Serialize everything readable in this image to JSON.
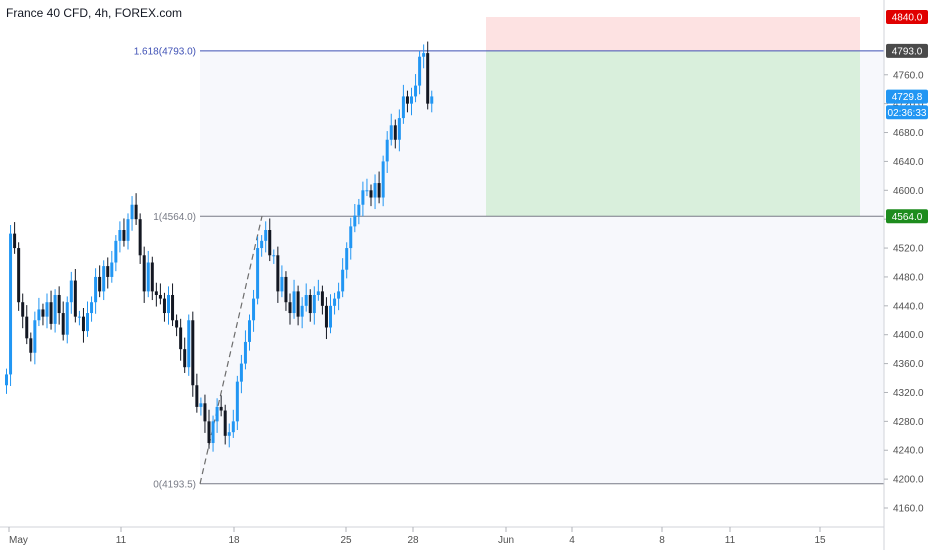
{
  "header": {
    "title": "France 40 CFD, 4h, FOREX.com"
  },
  "chart_data": {
    "type": "candlestick",
    "ylim": [
      4140,
      4860
    ],
    "y_ticks": [
      "4160.0",
      "4200.0",
      "4240.0",
      "4280.0",
      "4320.0",
      "4360.0",
      "4400.0",
      "4440.0",
      "4480.0",
      "4520.0",
      "4560.0",
      "4600.0",
      "4640.0",
      "4680.0",
      "4720.0",
      "4760.0",
      "4793.0",
      "4840.0"
    ],
    "x_ticks": [
      "May",
      "11",
      "18",
      "25",
      "28",
      "Jun",
      "4",
      "8",
      "11",
      "15"
    ],
    "fib_levels": [
      {
        "label": "1.618(4793.0)",
        "price": 4793.0,
        "color": "#3f51b5"
      },
      {
        "label": "1(4564.0)",
        "price": 4564.0,
        "color": "#787b86"
      },
      {
        "label": "0(4193.5)",
        "price": 4193.5,
        "color": "#787b86"
      }
    ],
    "price_badges": [
      {
        "text": "4840.0",
        "price": 4840.0,
        "color": "#e00000"
      },
      {
        "text": "4793.0",
        "price": 4793.0,
        "color": "#4a4a4a"
      },
      {
        "text": "4729.8",
        "price": 4729.8,
        "color": "#2196f3"
      },
      {
        "text": "02:36:33",
        "price": 4708,
        "color": "#2196f3"
      },
      {
        "text": "4564.0",
        "price": 4564.0,
        "color": "#1e8c1e"
      }
    ],
    "position": {
      "stop": 4840.0,
      "entry": 4793.0,
      "target": 4564.0
    },
    "closes": [
      4345,
      4540,
      4520,
      4445,
      4425,
      4395,
      4375,
      4420,
      4435,
      4425,
      4445,
      4415,
      4455,
      4430,
      4400,
      4445,
      4475,
      4425,
      4425,
      4405,
      4430,
      4445,
      4480,
      4460,
      4495,
      4480,
      4500,
      4530,
      4545,
      4530,
      4560,
      4580,
      4560,
      4510,
      4460,
      4500,
      4460,
      4455,
      4450,
      4430,
      4455,
      4420,
      4410,
      4380,
      4355,
      4420,
      4330,
      4300,
      4305,
      4280,
      4250,
      4280,
      4300,
      4295,
      4260,
      4265,
      4280,
      4335,
      4360,
      4390,
      4420,
      4450,
      4520,
      4530,
      4545,
      4510,
      4510,
      4460,
      4480,
      4445,
      4430,
      4460,
      4425,
      4440,
      4455,
      4430,
      4455,
      4460,
      4440,
      4410,
      4440,
      4450,
      4460,
      4490,
      4520,
      4550,
      4565,
      4580,
      4600,
      4600,
      4590,
      4610,
      4590,
      4640,
      4670,
      4690,
      4670,
      4700,
      4730,
      4720,
      4730,
      4745,
      4785,
      4790,
      4720,
      4730
    ]
  }
}
